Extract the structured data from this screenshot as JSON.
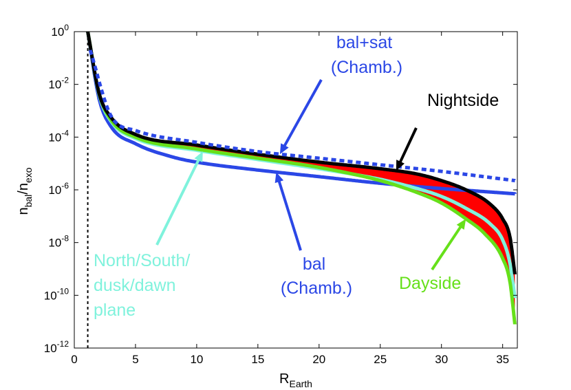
{
  "chart_data": {
    "type": "line",
    "xlabel": {
      "main": "R",
      "sub": "Earth"
    },
    "ylabel": {
      "n1": "n",
      "sub1": "bal",
      "slash": "/n",
      "sub2": "exo"
    },
    "xlim": [
      0,
      36.2
    ],
    "ylim_log10": [
      -12,
      0
    ],
    "x_ticks": [
      0,
      5,
      10,
      15,
      20,
      25,
      30,
      35
    ],
    "y_ticks": [
      {
        "value": 0,
        "base": "10",
        "exp": "0"
      },
      {
        "value": -2,
        "base": "10",
        "exp": "-2"
      },
      {
        "value": -4,
        "base": "10",
        "exp": "-4"
      },
      {
        "value": -6,
        "base": "10",
        "exp": "-6"
      },
      {
        "value": -8,
        "base": "10",
        "exp": "-8"
      },
      {
        "value": -10,
        "base": "10",
        "exp": "-10"
      },
      {
        "value": -12,
        "base": "10",
        "exp": "-12"
      }
    ],
    "exobase_line_x": 1.1,
    "band": {
      "name": "intermediate planes",
      "color": "#ff0000"
    },
    "series": [
      {
        "name": "bal+sat (Chamb.)",
        "color": "#2b47e6",
        "style": "dotted",
        "x": [
          1.3,
          3,
          5,
          10,
          15,
          20,
          25,
          30,
          36
        ],
        "log10_y": [
          -0.7,
          -3.2,
          -3.75,
          -4.2,
          -4.55,
          -4.8,
          -5.05,
          -5.3,
          -5.65
        ]
      },
      {
        "name": "bal (Chamb.)",
        "color": "#2b47e6",
        "style": "solid",
        "x": [
          1.1,
          2,
          3,
          5,
          8,
          10,
          15,
          20,
          25,
          30,
          33,
          36
        ],
        "log10_y": [
          0.0,
          -2.5,
          -3.6,
          -4.25,
          -4.75,
          -4.95,
          -5.25,
          -5.5,
          -5.75,
          -5.95,
          -6.05,
          -6.15
        ]
      },
      {
        "name": "Nightside",
        "color": "#000000",
        "style": "solid",
        "x": [
          1.1,
          2,
          3,
          5,
          10,
          15,
          20,
          25,
          28,
          30,
          32,
          34,
          35,
          35.6,
          36
        ],
        "log10_y": [
          0.0,
          -2.3,
          -3.25,
          -3.9,
          -4.3,
          -4.65,
          -4.95,
          -5.2,
          -5.4,
          -5.65,
          -6.0,
          -6.55,
          -7.1,
          -7.8,
          -9.2
        ]
      },
      {
        "name": "North/South/dusk/dawn plane",
        "color": "#7ff2dc",
        "style": "solid",
        "x": [
          1.1,
          2,
          3,
          5,
          10,
          15,
          20,
          25,
          28,
          30,
          32,
          34,
          35,
          35.6,
          36
        ],
        "log10_y": [
          0.0,
          -2.35,
          -3.4,
          -4.05,
          -4.5,
          -4.85,
          -5.2,
          -5.6,
          -5.95,
          -6.25,
          -6.7,
          -7.3,
          -7.9,
          -8.8,
          -10.1
        ]
      },
      {
        "name": "Dayside",
        "color": "#66e01a",
        "style": "solid",
        "x": [
          1.1,
          2,
          3,
          5,
          10,
          15,
          20,
          25,
          28,
          30,
          32,
          33.5,
          35,
          35.6,
          36
        ],
        "log10_y": [
          0.0,
          -2.3,
          -3.35,
          -4.0,
          -4.45,
          -4.8,
          -5.15,
          -5.65,
          -6.1,
          -6.5,
          -7.1,
          -7.65,
          -8.6,
          -9.5,
          -11.1
        ]
      }
    ],
    "annotations": [
      {
        "name": "bal-sat",
        "lines": [
          "bal+sat",
          "(Chamb.)"
        ],
        "color": "#2b47e6"
      },
      {
        "name": "nightside",
        "lines": [
          "Nightside"
        ],
        "color": "#000000"
      },
      {
        "name": "north-south",
        "lines": [
          "North/South/",
          "dusk/dawn",
          "plane"
        ],
        "color": "#7ff2dc"
      },
      {
        "name": "bal",
        "lines": [
          "bal",
          "(Chamb.)"
        ],
        "color": "#2b47e6"
      },
      {
        "name": "dayside",
        "lines": [
          "Dayside"
        ],
        "color": "#66e01a"
      }
    ]
  }
}
